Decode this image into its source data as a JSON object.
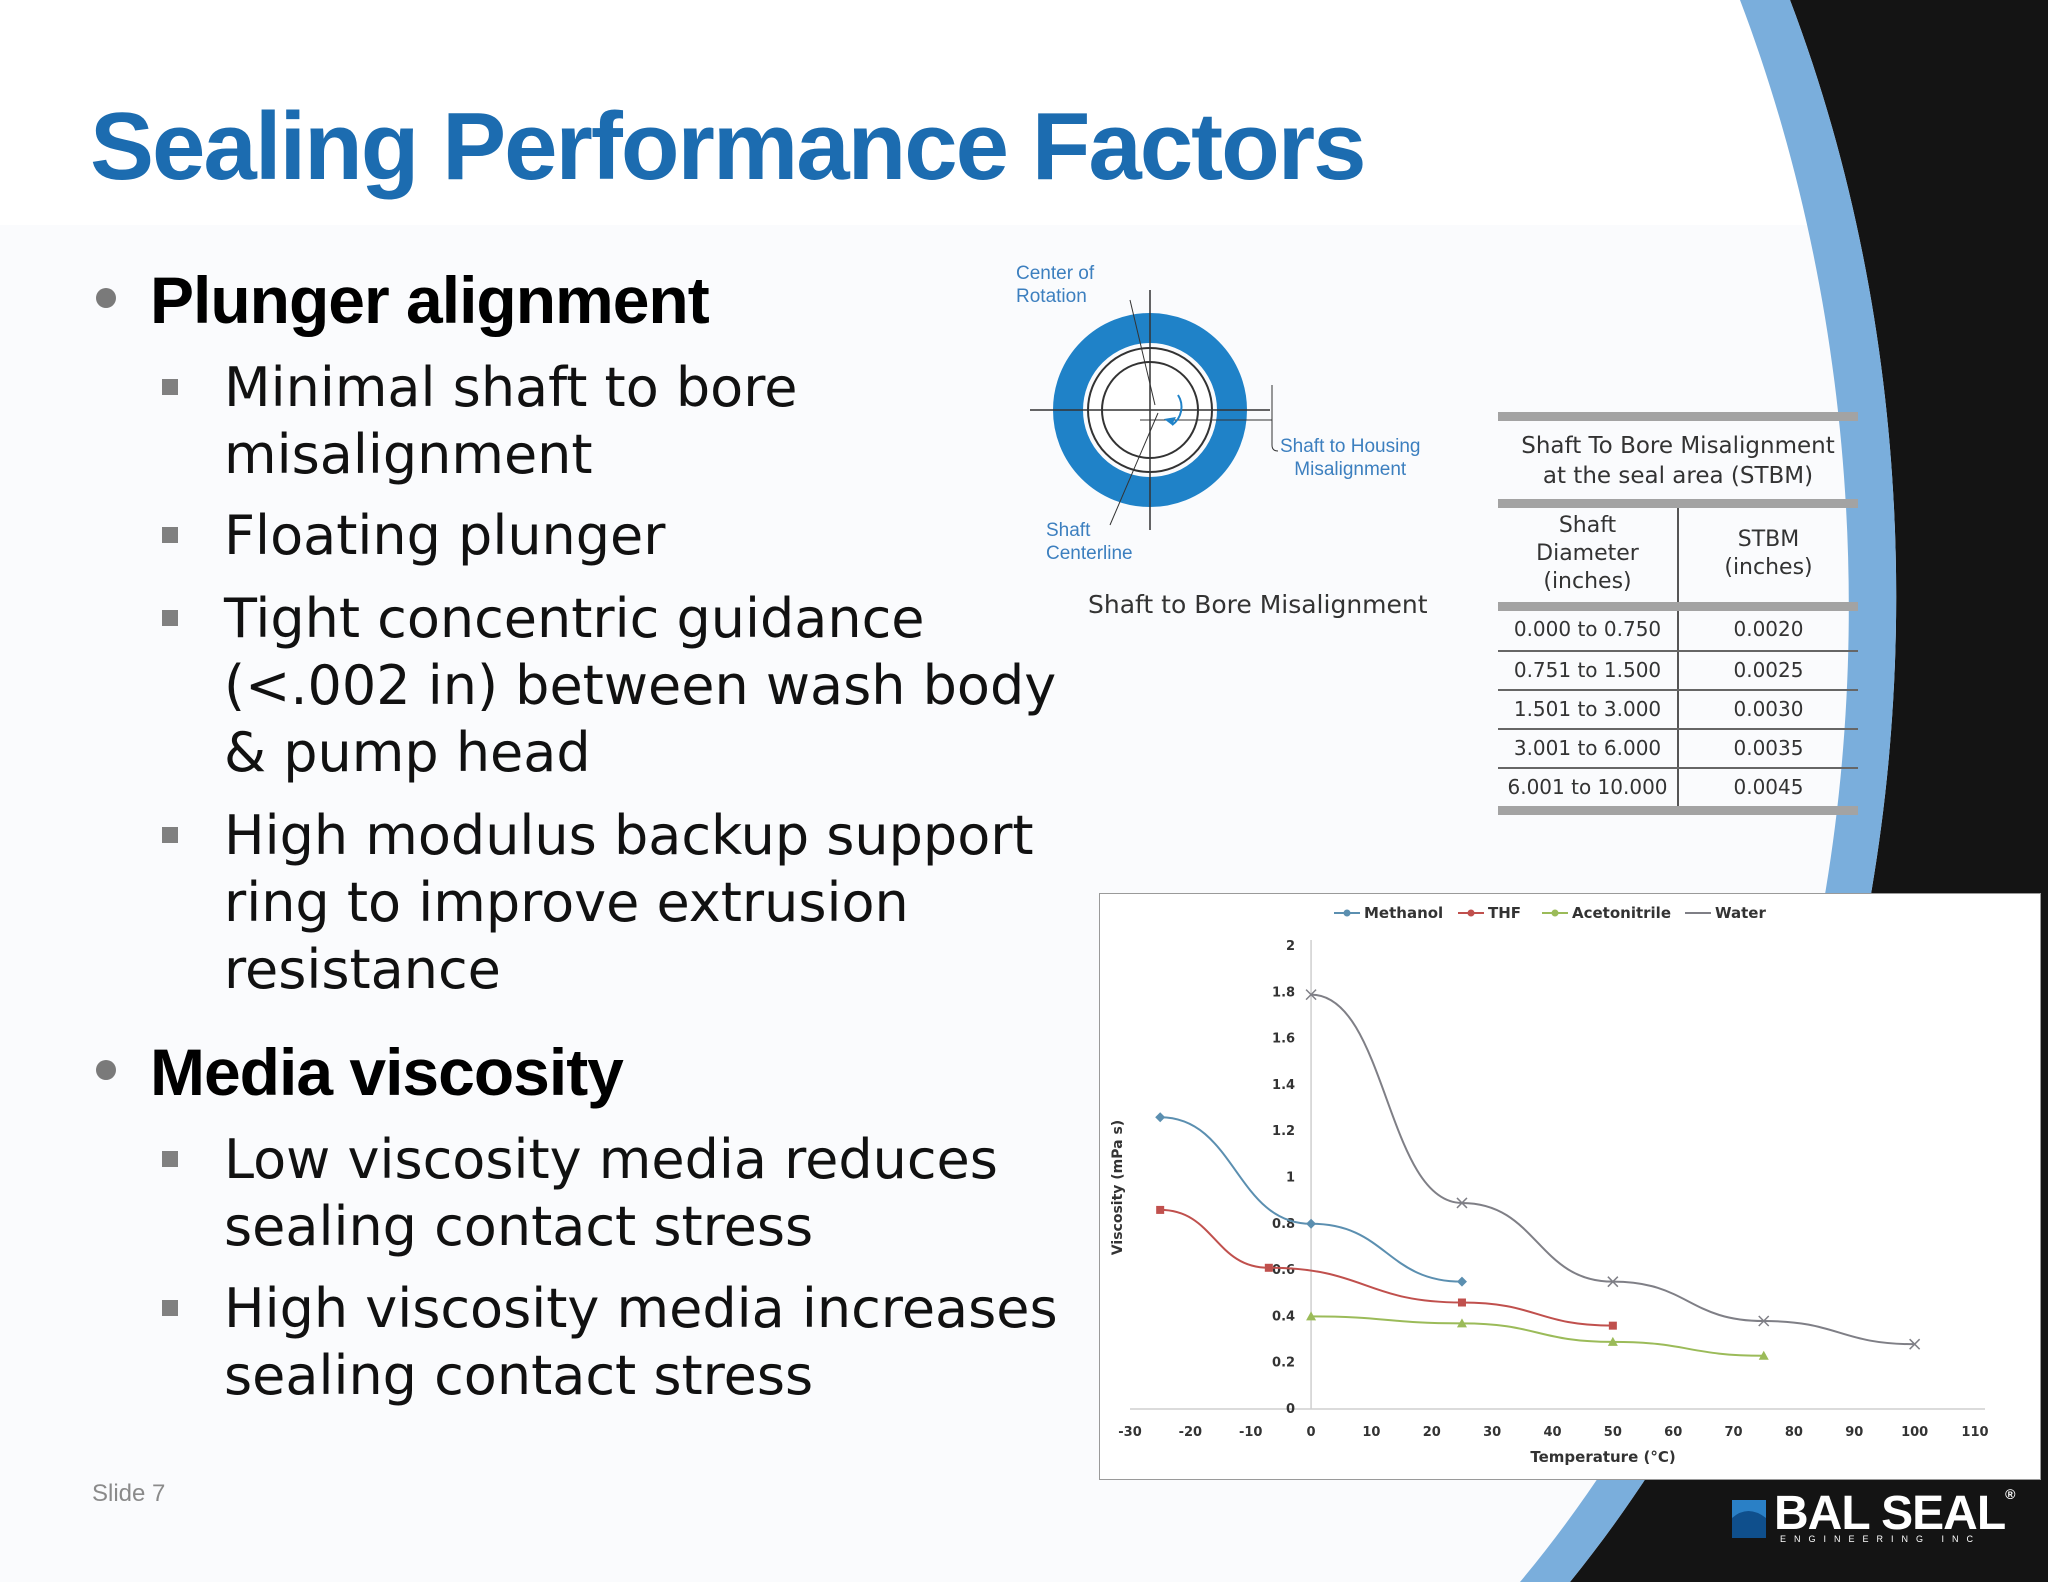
{
  "slide": {
    "title": "Sealing Performance Factors",
    "slide_number": "Slide 7",
    "colors": {
      "title": "#1c6cb0",
      "accent_blue": "#1f82c8",
      "arc_light": "#7aaedc",
      "dark_corner": "#141414"
    }
  },
  "bullets": [
    {
      "label": "Plunger alignment",
      "items": [
        "Minimal shaft to bore misalignment",
        "Floating plunger",
        "Tight concentric guidance (<.002 in) between wash body & pump head",
        "High modulus backup support ring to improve extrusion resistance"
      ]
    },
    {
      "label": "Media viscosity",
      "items": [
        "Low viscosity media reduces sealing contact stress",
        "High viscosity media increases sealing contact stress"
      ]
    }
  ],
  "diagram": {
    "center_of_rotation": [
      "Center of",
      "Rotation"
    ],
    "shaft_to_housing": [
      "Shaft to Housing",
      "Misalignment"
    ],
    "shaft_centerline": [
      "Shaft",
      "Centerline"
    ],
    "caption": "Shaft to Bore Misalignment"
  },
  "stbm_table": {
    "title_line1": "Shaft To Bore Misalignment",
    "title_line2": "at the seal area (STBM)",
    "col1": [
      "Shaft",
      "Diameter",
      "(inches)"
    ],
    "col2": [
      "STBM",
      "(inches)"
    ],
    "rows": [
      [
        "0.000 to 0.750",
        "0.0020"
      ],
      [
        "0.751 to 1.500",
        "0.0025"
      ],
      [
        "1.501 to 3.000",
        "0.0030"
      ],
      [
        "3.001 to 6.000",
        "0.0035"
      ],
      [
        "6.001 to 10.000",
        "0.0045"
      ]
    ]
  },
  "chart_data": {
    "type": "line",
    "title": "",
    "xlabel": "Temperature (°C)",
    "ylabel": "Viscosity (mPa s)",
    "xlim": [
      -30,
      110
    ],
    "ylim": [
      0,
      2
    ],
    "xticks": [
      "-30",
      "-20",
      "-10",
      "0",
      "10",
      "20",
      "30",
      "40",
      "50",
      "60",
      "70",
      "80",
      "90",
      "100",
      "110"
    ],
    "yticks": [
      "0",
      "0.2",
      "0.4",
      "0.6",
      "0.8",
      "1",
      "1.2",
      "1.4",
      "1.6",
      "1.8",
      "2"
    ],
    "legend_position": "top",
    "grid": false,
    "series": [
      {
        "name": "Methanol",
        "color": "#5b8fb0",
        "marker": "diamond",
        "points": [
          [
            -25,
            1.26
          ],
          [
            0,
            0.8
          ],
          [
            25,
            0.55
          ]
        ]
      },
      {
        "name": "THF",
        "color": "#c0504d",
        "marker": "square",
        "points": [
          [
            -25,
            0.86
          ],
          [
            -7,
            0.61
          ],
          [
            25,
            0.46
          ],
          [
            50,
            0.36
          ]
        ]
      },
      {
        "name": "Acetonitrile",
        "color": "#9bbb59",
        "marker": "triangle",
        "points": [
          [
            0,
            0.4
          ],
          [
            25,
            0.37
          ],
          [
            50,
            0.29
          ],
          [
            75,
            0.23
          ]
        ]
      },
      {
        "name": "Water",
        "color": "#7f7f86",
        "marker": "x",
        "points": [
          [
            0,
            1.79
          ],
          [
            25,
            0.89
          ],
          [
            50,
            0.55
          ],
          [
            75,
            0.38
          ],
          [
            100,
            0.28
          ]
        ]
      }
    ]
  },
  "logo": {
    "main": "BAL SEAL",
    "sub": "ENGINEERING INC",
    "mark": "®"
  }
}
